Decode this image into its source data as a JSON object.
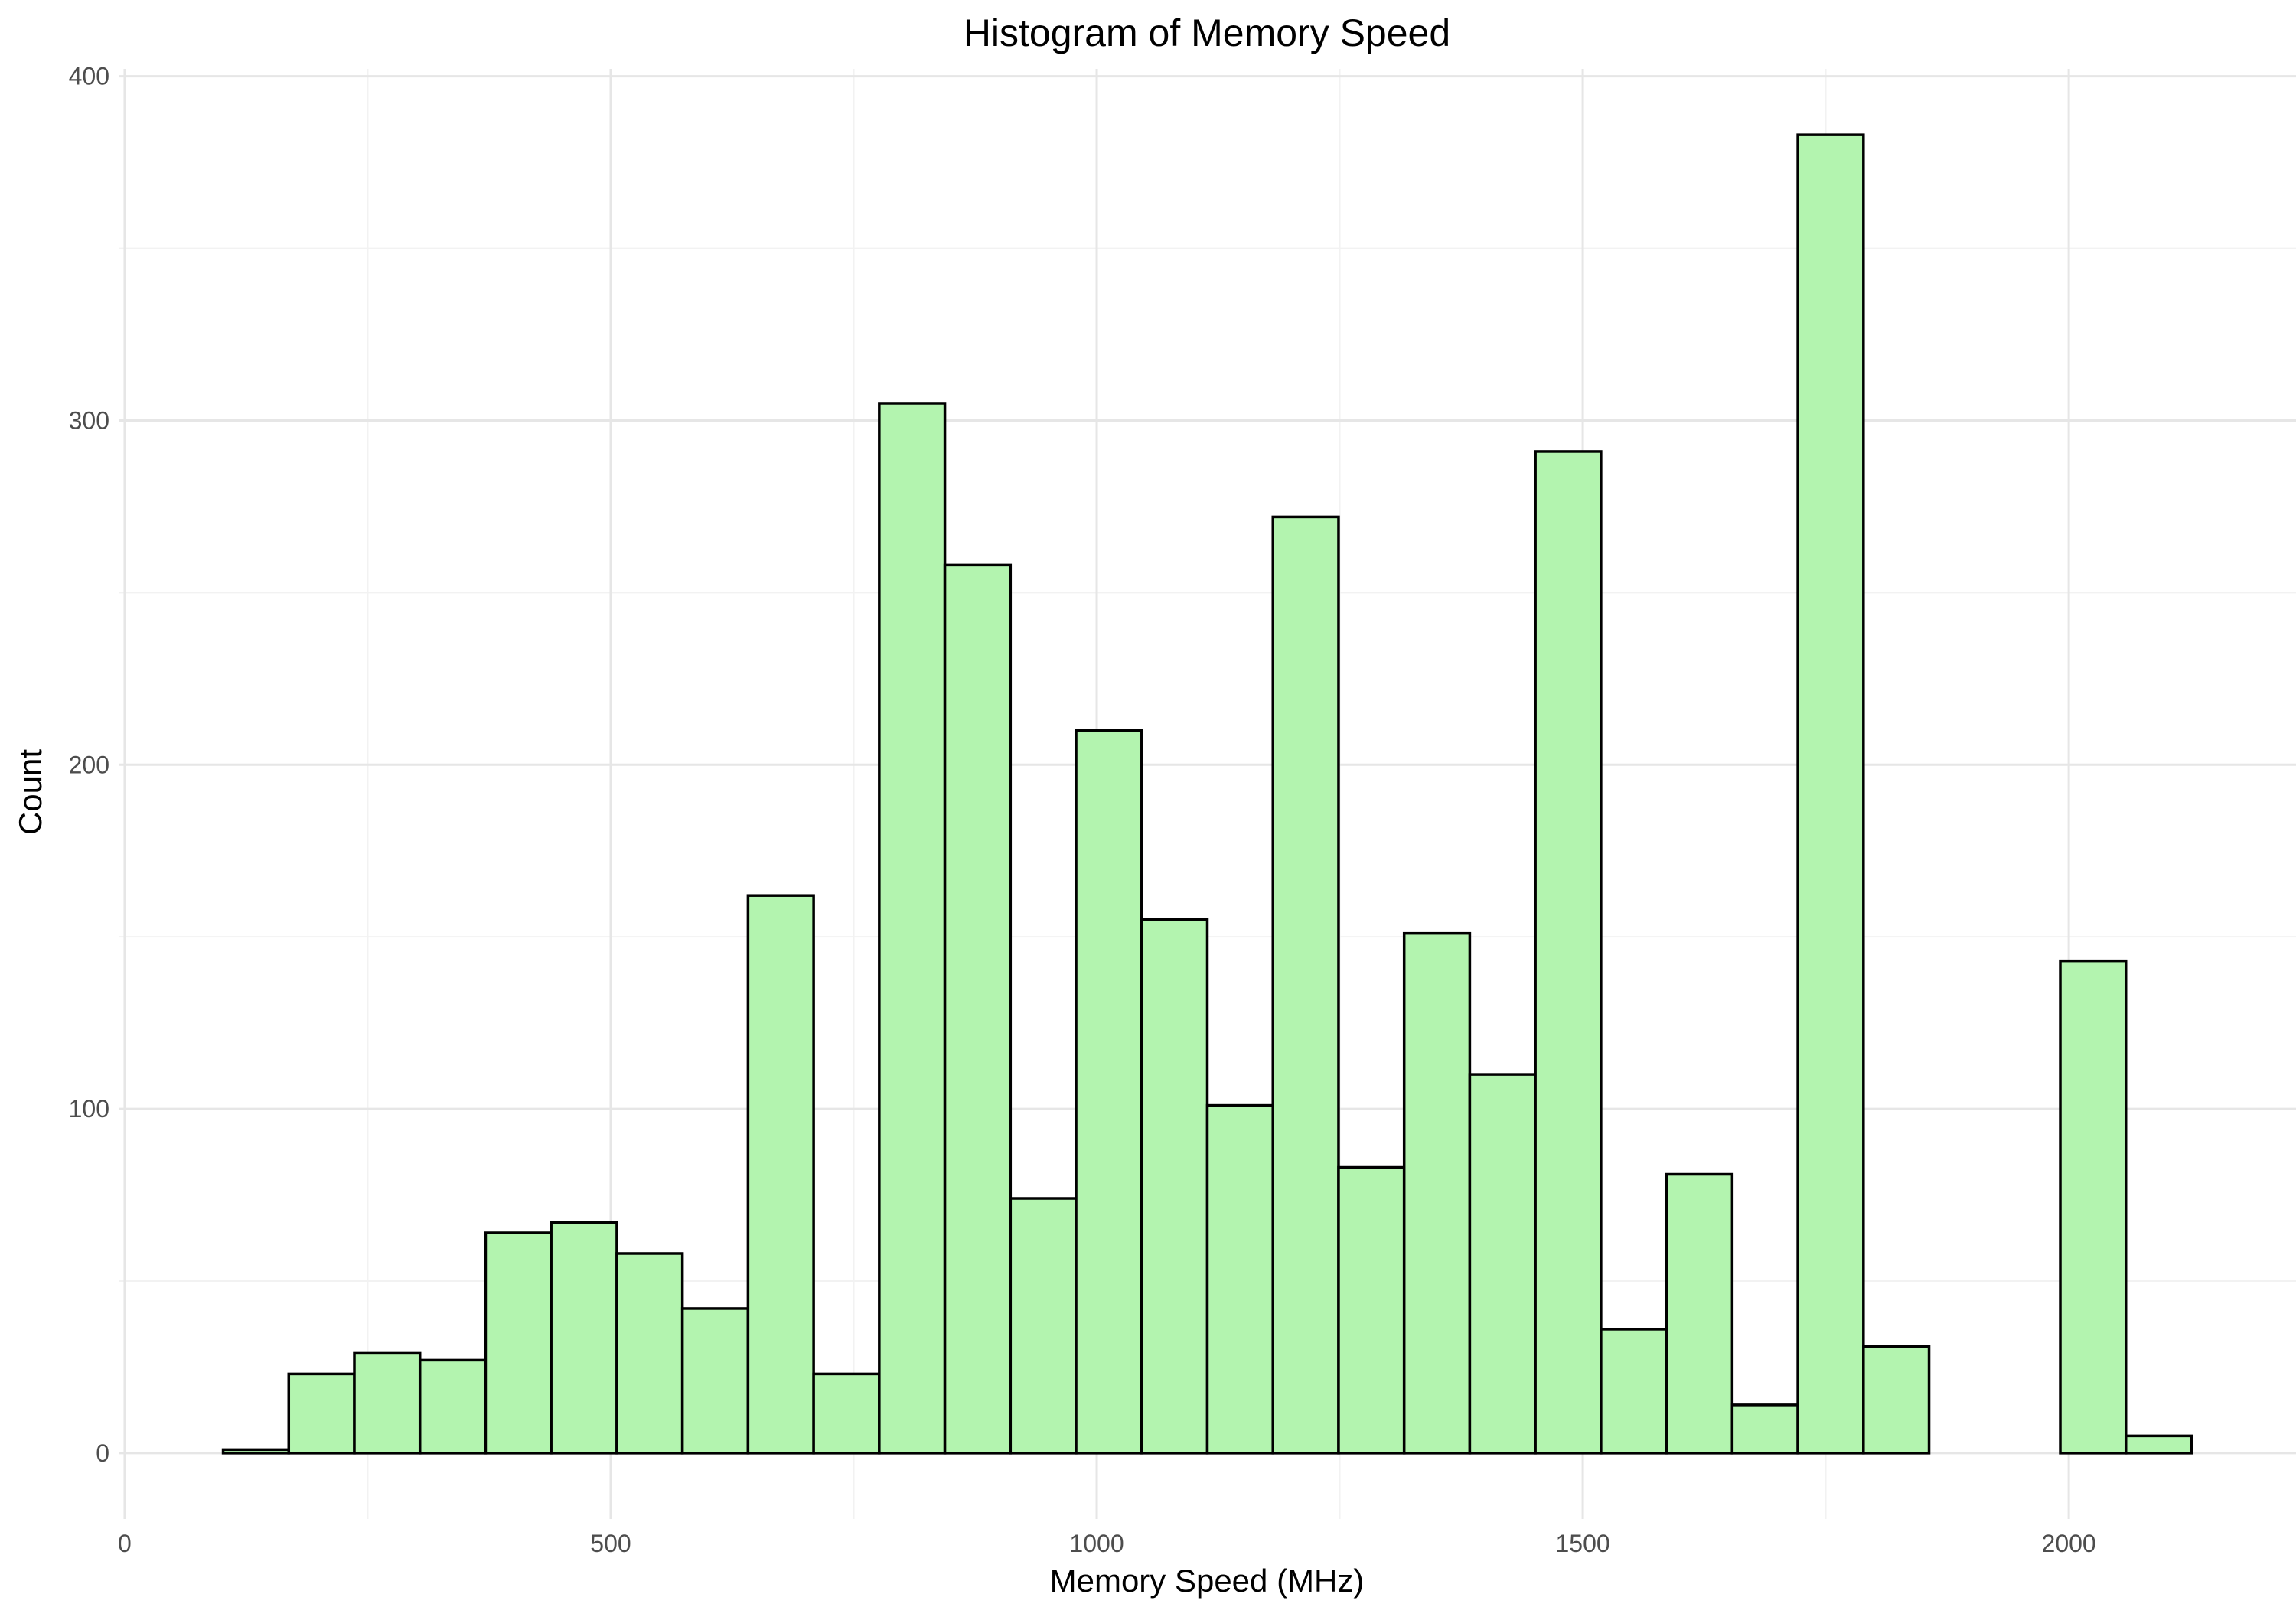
{
  "chart_data": {
    "type": "bar",
    "subtype": "histogram",
    "title": "Histogram of Memory Speed",
    "xlabel": "Memory Speed (MHz)",
    "ylabel": "Count",
    "bin_width": 67.5,
    "bins": [
      {
        "x_start": 101.25,
        "x_end": 168.75,
        "count": 1
      },
      {
        "x_start": 168.75,
        "x_end": 236.25,
        "count": 23
      },
      {
        "x_start": 236.25,
        "x_end": 303.75,
        "count": 29
      },
      {
        "x_start": 303.75,
        "x_end": 371.25,
        "count": 27
      },
      {
        "x_start": 371.25,
        "x_end": 438.75,
        "count": 64
      },
      {
        "x_start": 438.75,
        "x_end": 506.25,
        "count": 67
      },
      {
        "x_start": 506.25,
        "x_end": 573.75,
        "count": 58
      },
      {
        "x_start": 573.75,
        "x_end": 641.25,
        "count": 42
      },
      {
        "x_start": 641.25,
        "x_end": 708.75,
        "count": 162
      },
      {
        "x_start": 708.75,
        "x_end": 776.25,
        "count": 23
      },
      {
        "x_start": 776.25,
        "x_end": 843.75,
        "count": 305
      },
      {
        "x_start": 843.75,
        "x_end": 911.25,
        "count": 258
      },
      {
        "x_start": 911.25,
        "x_end": 978.75,
        "count": 74
      },
      {
        "x_start": 978.75,
        "x_end": 1046.25,
        "count": 210
      },
      {
        "x_start": 1046.25,
        "x_end": 1113.75,
        "count": 155
      },
      {
        "x_start": 1113.75,
        "x_end": 1181.25,
        "count": 101
      },
      {
        "x_start": 1181.25,
        "x_end": 1248.75,
        "count": 272
      },
      {
        "x_start": 1248.75,
        "x_end": 1316.25,
        "count": 83
      },
      {
        "x_start": 1316.25,
        "x_end": 1383.75,
        "count": 151
      },
      {
        "x_start": 1383.75,
        "x_end": 1451.25,
        "count": 110
      },
      {
        "x_start": 1451.25,
        "x_end": 1518.75,
        "count": 291
      },
      {
        "x_start": 1518.75,
        "x_end": 1586.25,
        "count": 36
      },
      {
        "x_start": 1586.25,
        "x_end": 1653.75,
        "count": 81
      },
      {
        "x_start": 1653.75,
        "x_end": 1721.25,
        "count": 14
      },
      {
        "x_start": 1721.25,
        "x_end": 1788.75,
        "count": 383
      },
      {
        "x_start": 1788.75,
        "x_end": 1856.25,
        "count": 31
      },
      {
        "x_start": 1856.25,
        "x_end": 1923.75,
        "count": 0
      },
      {
        "x_start": 1923.75,
        "x_end": 1991.25,
        "count": 0
      },
      {
        "x_start": 1991.25,
        "x_end": 2058.75,
        "count": 143
      },
      {
        "x_start": 2058.75,
        "x_end": 2126.25,
        "count": 5
      }
    ],
    "x_ticks": [
      0,
      500,
      1000,
      1500,
      2000
    ],
    "y_ticks": [
      0,
      100,
      200,
      300,
      400
    ],
    "xlim": [
      -6.25,
      2233.75
    ],
    "ylim": [
      -19.15,
      402.15
    ],
    "grid": true,
    "legend": "none",
    "colors": {
      "bar_fill": "#b3f4af",
      "bar_outline": "#000000",
      "grid": "#e6e6e6"
    }
  }
}
